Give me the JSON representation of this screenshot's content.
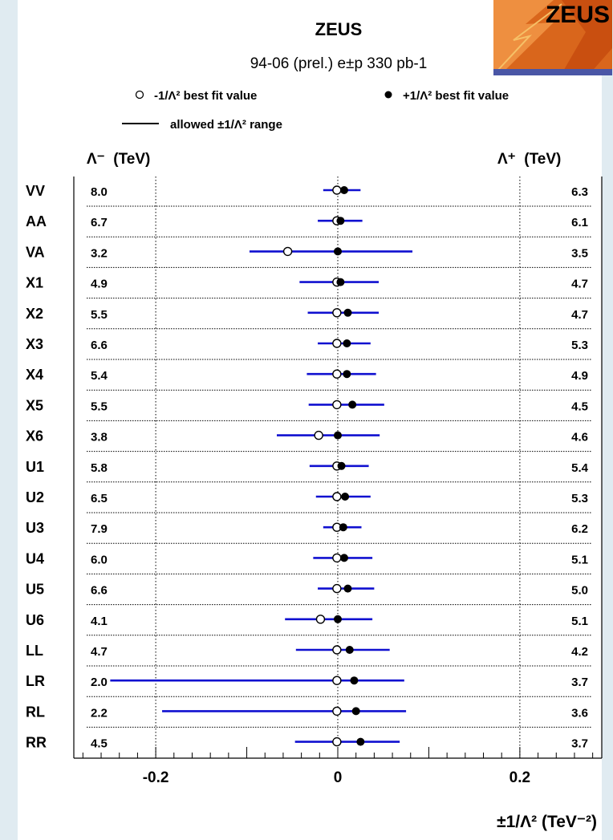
{
  "logo": {
    "text": "ZEUS"
  },
  "chart_data": {
    "type": "scatter",
    "title": "ZEUS",
    "subtitle": "94-06 (prel.) e±p 330 pb-1",
    "legend": {
      "minus_label": "-1/Λ² best fit value",
      "plus_label": "+1/Λ² best fit value",
      "range_label": "allowed ±1/Λ² range"
    },
    "left_header": "Λ⁻  (TeV)",
    "right_header": "Λ⁺  (TeV)",
    "xlabel": "±1/Λ² (TeV⁻²)",
    "xlim": [
      -0.29,
      0.29
    ],
    "xticks": [
      -0.2,
      0,
      0.2
    ],
    "xtick_labels": [
      "-0.2",
      "0",
      "0.2"
    ],
    "series_colors": {
      "range": "#1010d0",
      "points": "#000000"
    },
    "models": [
      {
        "name": "VV",
        "lambda_minus": "8.0",
        "lambda_plus": "6.3",
        "minus_best": -0.001,
        "plus_best": 0.007,
        "range": [
          -0.016,
          0.025
        ]
      },
      {
        "name": "AA",
        "lambda_minus": "6.7",
        "lambda_plus": "6.1",
        "minus_best": -0.001,
        "plus_best": 0.003,
        "range": [
          -0.022,
          0.027
        ]
      },
      {
        "name": "VA",
        "lambda_minus": "3.2",
        "lambda_plus": "3.5",
        "minus_best": -0.055,
        "plus_best": 0.0,
        "range": [
          -0.097,
          0.082
        ]
      },
      {
        "name": "X1",
        "lambda_minus": "4.9",
        "lambda_plus": "4.7",
        "minus_best": -0.001,
        "plus_best": 0.003,
        "range": [
          -0.042,
          0.045
        ]
      },
      {
        "name": "X2",
        "lambda_minus": "5.5",
        "lambda_plus": "4.7",
        "minus_best": -0.001,
        "plus_best": 0.011,
        "range": [
          -0.033,
          0.045
        ]
      },
      {
        "name": "X3",
        "lambda_minus": "6.6",
        "lambda_plus": "5.3",
        "minus_best": -0.001,
        "plus_best": 0.01,
        "range": [
          -0.022,
          0.036
        ]
      },
      {
        "name": "X4",
        "lambda_minus": "5.4",
        "lambda_plus": "4.9",
        "minus_best": -0.001,
        "plus_best": 0.01,
        "range": [
          -0.034,
          0.042
        ]
      },
      {
        "name": "X5",
        "lambda_minus": "5.5",
        "lambda_plus": "4.5",
        "minus_best": -0.001,
        "plus_best": 0.016,
        "range": [
          -0.032,
          0.051
        ]
      },
      {
        "name": "X6",
        "lambda_minus": "3.8",
        "lambda_plus": "4.6",
        "minus_best": -0.021,
        "plus_best": 0.0,
        "range": [
          -0.067,
          0.046
        ]
      },
      {
        "name": "U1",
        "lambda_minus": "5.8",
        "lambda_plus": "5.4",
        "minus_best": -0.001,
        "plus_best": 0.004,
        "range": [
          -0.031,
          0.034
        ]
      },
      {
        "name": "U2",
        "lambda_minus": "6.5",
        "lambda_plus": "5.3",
        "minus_best": -0.001,
        "plus_best": 0.008,
        "range": [
          -0.024,
          0.036
        ]
      },
      {
        "name": "U3",
        "lambda_minus": "7.9",
        "lambda_plus": "6.2",
        "minus_best": -0.001,
        "plus_best": 0.006,
        "range": [
          -0.016,
          0.026
        ]
      },
      {
        "name": "U4",
        "lambda_minus": "6.0",
        "lambda_plus": "5.1",
        "minus_best": -0.001,
        "plus_best": 0.007,
        "range": [
          -0.027,
          0.038
        ]
      },
      {
        "name": "U5",
        "lambda_minus": "6.6",
        "lambda_plus": "5.0",
        "minus_best": -0.001,
        "plus_best": 0.011,
        "range": [
          -0.022,
          0.04
        ]
      },
      {
        "name": "U6",
        "lambda_minus": "4.1",
        "lambda_plus": "5.1",
        "minus_best": -0.019,
        "plus_best": 0.0,
        "range": [
          -0.058,
          0.038
        ]
      },
      {
        "name": "LL",
        "lambda_minus": "4.7",
        "lambda_plus": "4.2",
        "minus_best": -0.001,
        "plus_best": 0.013,
        "range": [
          -0.046,
          0.057
        ]
      },
      {
        "name": "LR",
        "lambda_minus": "2.0",
        "lambda_plus": "3.7",
        "minus_best": -0.001,
        "plus_best": 0.018,
        "range": [
          -0.25,
          0.073
        ]
      },
      {
        "name": "RL",
        "lambda_minus": "2.2",
        "lambda_plus": "3.6",
        "minus_best": -0.001,
        "plus_best": 0.02,
        "range": [
          -0.193,
          0.075
        ]
      },
      {
        "name": "RR",
        "lambda_minus": "4.5",
        "lambda_plus": "3.7",
        "minus_best": -0.001,
        "plus_best": 0.025,
        "range": [
          -0.047,
          0.068
        ]
      }
    ]
  }
}
